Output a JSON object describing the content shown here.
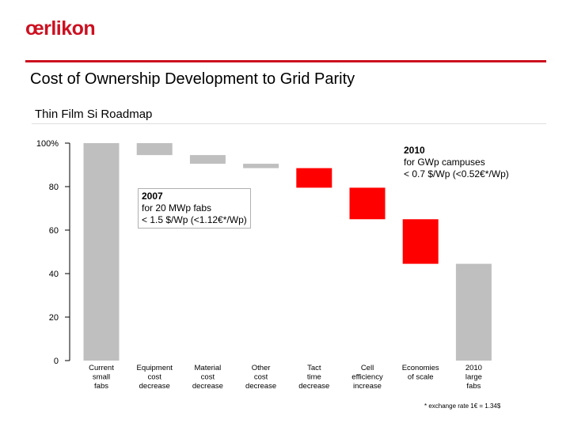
{
  "header": {
    "logo": "œrlikon",
    "title": "Cost of Ownership Development to Grid Parity",
    "subtitle": "Thin Film Si Roadmap"
  },
  "colors": {
    "brand": "#cc1020",
    "neutral_bar": "#bfbfbf",
    "highlight_bar": "#ff0000"
  },
  "annotations": {
    "box_2010": {
      "head": "2010",
      "line1": "for GWp campuses",
      "line2": "< 0.7 $/Wp (<0.52€*/Wp)"
    },
    "box_2007": {
      "head": "2007",
      "line1": "for 20 MWp fabs",
      "line2": "< 1.5 $/Wp (<1.12€*/Wp)"
    }
  },
  "footnote": "* exchange rate 1€ = 1.34$",
  "chart_data": {
    "type": "bar",
    "subtype": "waterfall",
    "ylim": [
      0,
      100
    ],
    "yticks": [
      "0",
      "20",
      "40",
      "60",
      "80",
      "100%"
    ],
    "grid": false,
    "categories": [
      "Current small fabs",
      "Equipment cost decrease",
      "Material cost decrease",
      "Other cost decrease",
      "Tact time decrease",
      "Cell efficiency increase",
      "Economies of scale",
      "2010 large fabs"
    ],
    "bars": [
      {
        "label_lines": [
          "Current",
          "small",
          "fabs"
        ],
        "low": 0,
        "high": 100,
        "color": "neutral"
      },
      {
        "label_lines": [
          "Equipment",
          "cost",
          "decrease"
        ],
        "low": 94.5,
        "high": 100,
        "color": "neutral"
      },
      {
        "label_lines": [
          "Material",
          "cost",
          "decrease"
        ],
        "low": 90.5,
        "high": 94.5,
        "color": "neutral"
      },
      {
        "label_lines": [
          "Other",
          "cost",
          "decrease"
        ],
        "low": 88.5,
        "high": 90.5,
        "color": "neutral"
      },
      {
        "label_lines": [
          "Tact",
          "time",
          "decrease"
        ],
        "low": 79.5,
        "high": 88.5,
        "color": "highlight"
      },
      {
        "label_lines": [
          "Cell",
          "efficiency",
          "increase"
        ],
        "low": 65,
        "high": 79.5,
        "color": "highlight"
      },
      {
        "label_lines": [
          "Economies",
          "of scale"
        ],
        "low": 44.5,
        "high": 65,
        "color": "highlight"
      },
      {
        "label_lines": [
          "2010",
          "large",
          "fabs"
        ],
        "low": 0,
        "high": 44.5,
        "color": "neutral"
      }
    ]
  }
}
